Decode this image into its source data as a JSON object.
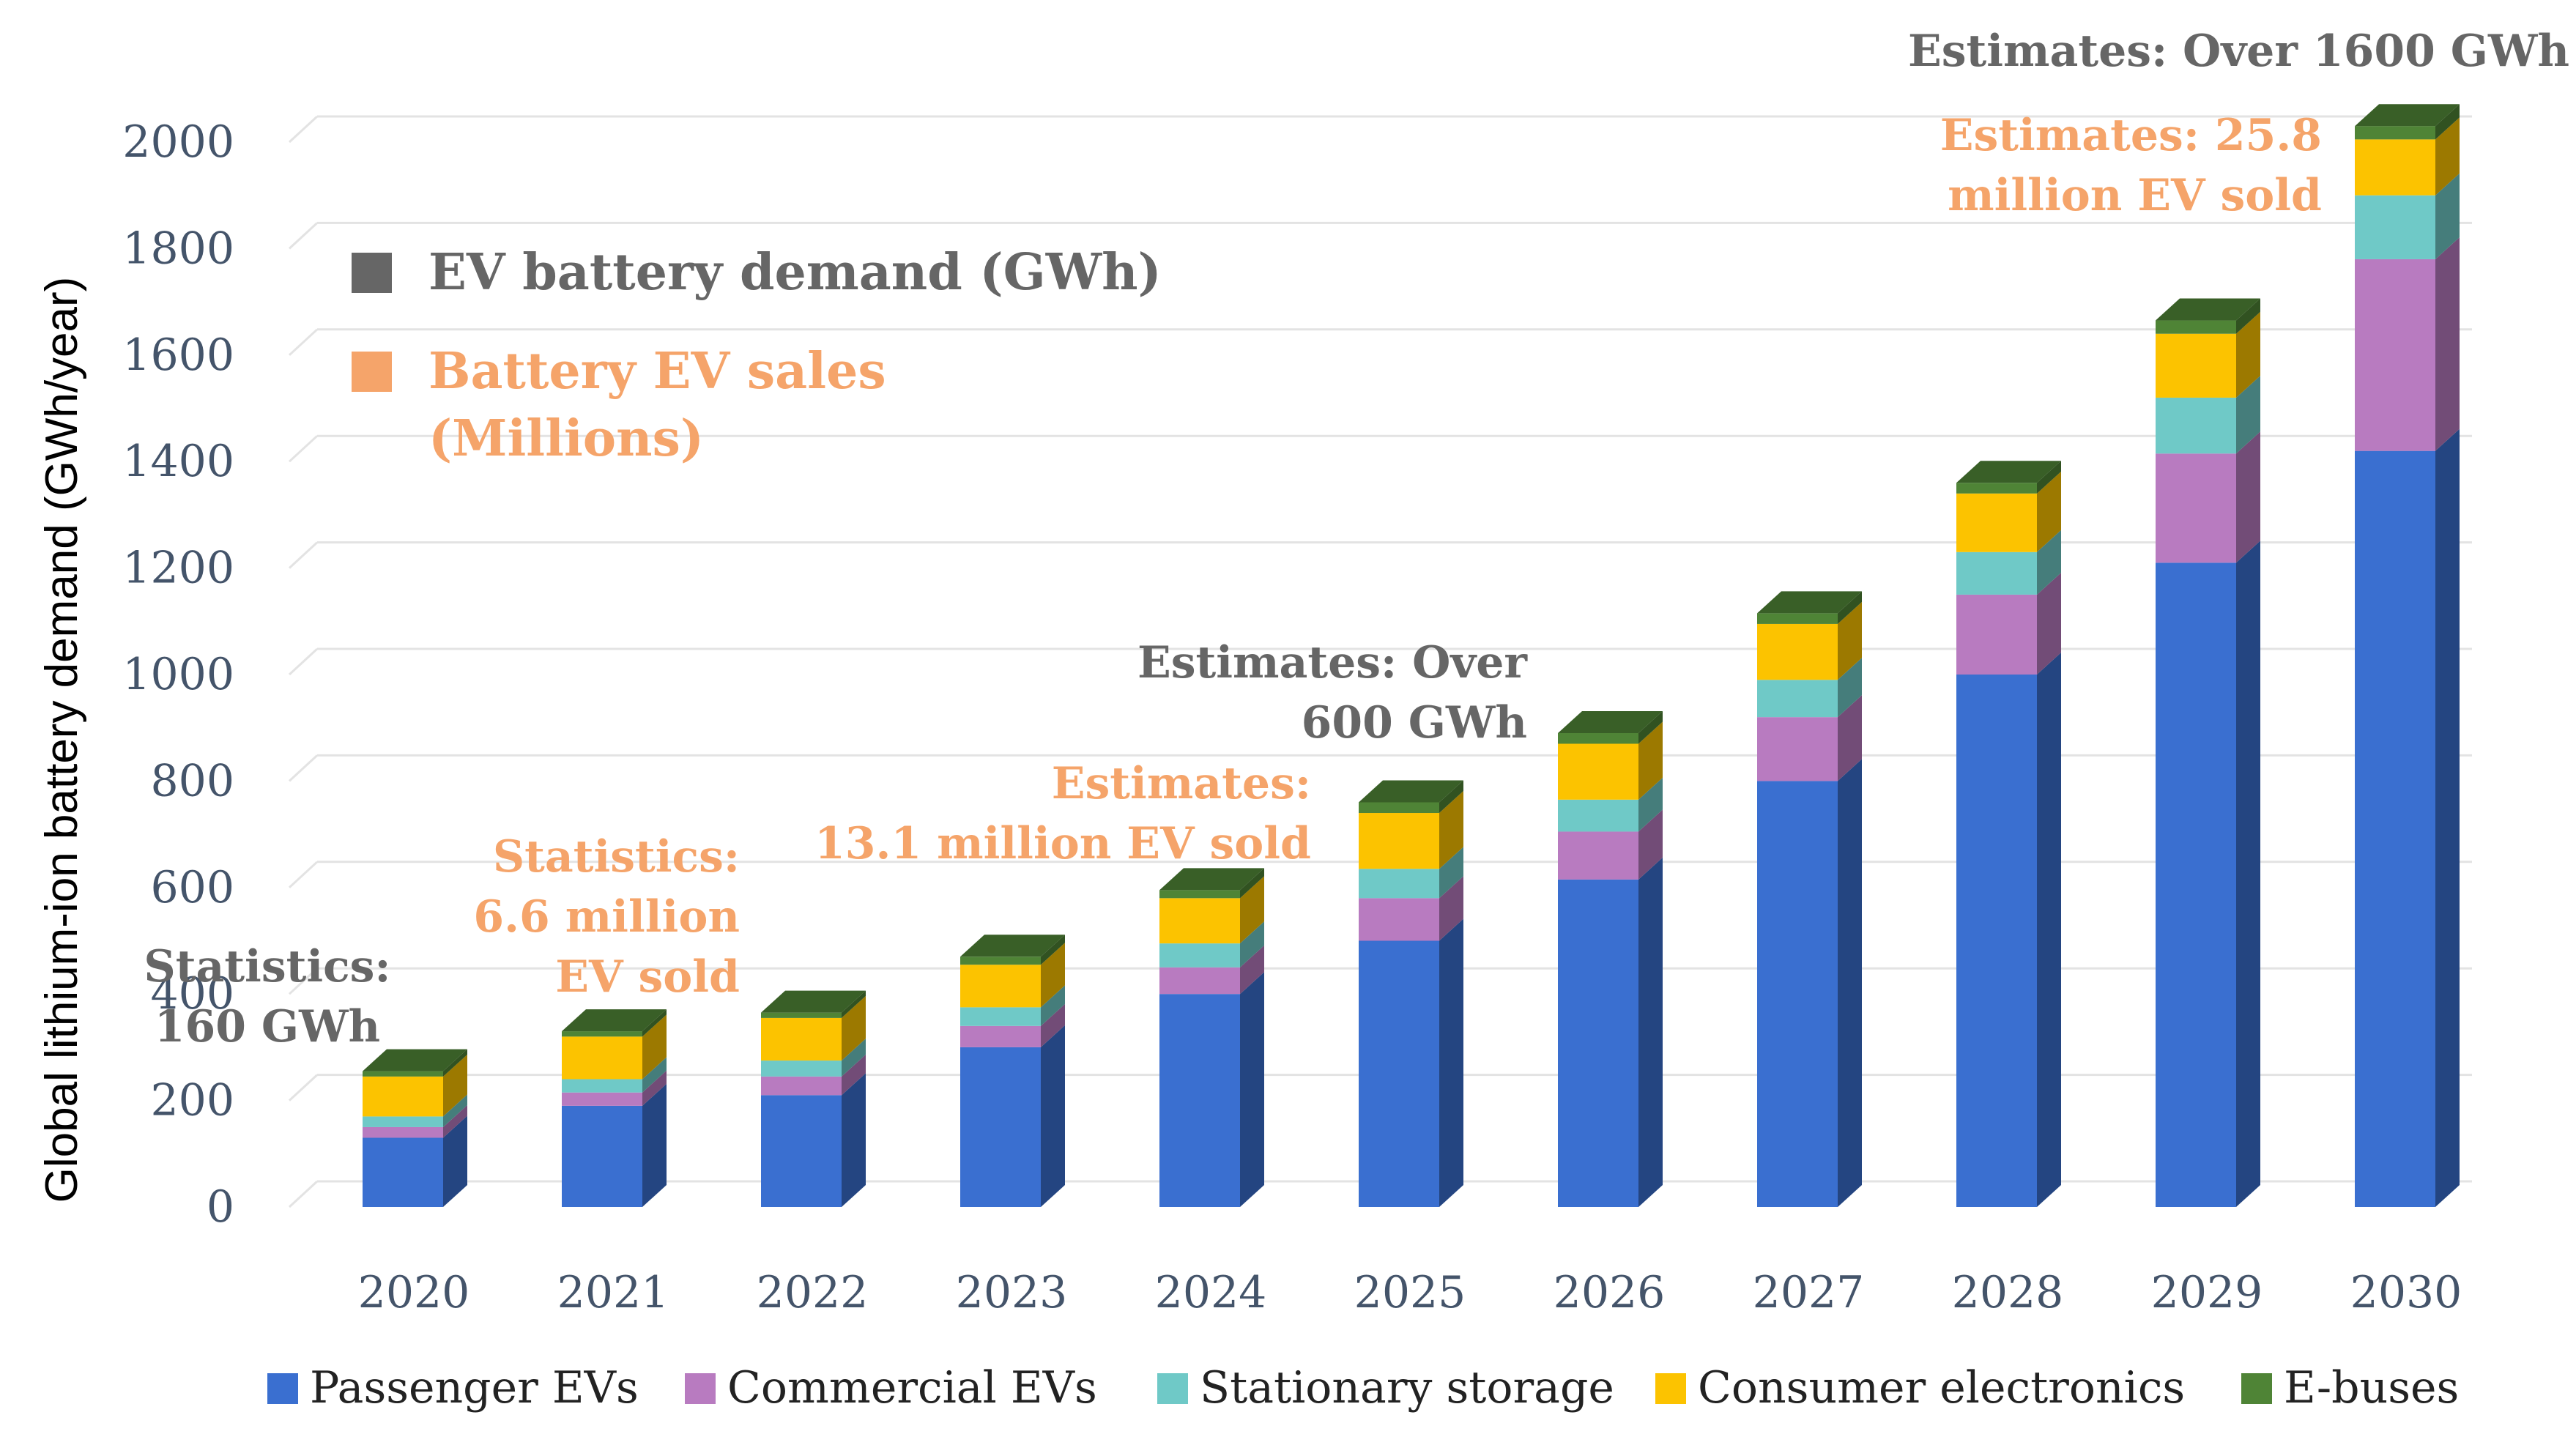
{
  "chart_data": {
    "type": "bar",
    "stacked": true,
    "three_d": true,
    "title": "",
    "xlabel": "",
    "ylabel": "Global lithium-ion battery demand (GWh/year)",
    "ylim": [
      0,
      2000
    ],
    "yticks": [
      0,
      200,
      400,
      600,
      800,
      1000,
      1200,
      1400,
      1600,
      1800,
      2000
    ],
    "grid": true,
    "legend_position": "bottom",
    "categories": [
      "2020",
      "2021",
      "2022",
      "2023",
      "2024",
      "2025",
      "2026",
      "2027",
      "2028",
      "2029",
      "2030"
    ],
    "series": [
      {
        "name": "Passenger EVs",
        "color": "#3a6fd0",
        "values": [
          130,
          190,
          210,
          300,
          400,
          500,
          615,
          800,
          1000,
          1210,
          1420
        ]
      },
      {
        "name": "Commercial EVs",
        "color": "#b87bc0",
        "values": [
          20,
          25,
          35,
          40,
          50,
          80,
          90,
          120,
          150,
          205,
          360
        ]
      },
      {
        "name": "Stationary storage",
        "color": "#6fc9c7",
        "values": [
          20,
          25,
          30,
          35,
          45,
          55,
          60,
          70,
          80,
          105,
          120
        ]
      },
      {
        "name": "Consumer electronics",
        "color": "#fcc300",
        "values": [
          75,
          80,
          80,
          80,
          85,
          105,
          105,
          105,
          110,
          120,
          105
        ]
      },
      {
        "name": "E-buses",
        "color": "#4f8436",
        "values": [
          10,
          10,
          10,
          15,
          15,
          20,
          20,
          20,
          20,
          25,
          25
        ]
      }
    ],
    "annotations": [
      {
        "lines": [
          "Statistics:",
          "160 GWh"
        ],
        "color": "#666666",
        "category": "2020"
      },
      {
        "lines": [
          "Statistics:",
          "6.6 million",
          "EV sold"
        ],
        "color": "#f5a46a",
        "category": "2021"
      },
      {
        "lines": [
          "Estimates:",
          "13.1 million EV sold"
        ],
        "color": "#f5a46a",
        "category": "2024"
      },
      {
        "lines": [
          "Estimates: Over",
          "600 GWh"
        ],
        "color": "#666666",
        "category": "2025"
      },
      {
        "lines": [
          "Estimates: 25.8",
          "million EV sold"
        ],
        "color": "#f5a46a",
        "category": "2029"
      },
      {
        "lines": [
          "Estimates: Over 1600 GWh"
        ],
        "color": "#666666",
        "category": "2030"
      }
    ],
    "inset_legend": [
      {
        "lines": [
          "EV battery demand (GWh)"
        ],
        "color": "#666666"
      },
      {
        "lines": [
          "Battery EV sales",
          "(Millions)"
        ],
        "color": "#f5a46a"
      }
    ]
  }
}
